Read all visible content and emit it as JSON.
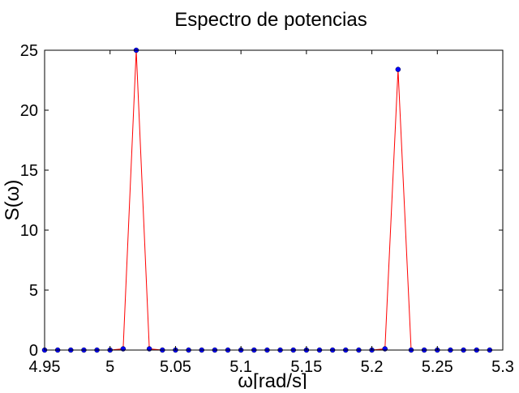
{
  "chart_data": {
    "type": "line",
    "title": "Espectro de potencias",
    "xlabel": "ω[rad/s]",
    "ylabel": "S(ω)",
    "xlim": [
      4.95,
      5.3
    ],
    "ylim": [
      0,
      25
    ],
    "xticks": [
      4.95,
      5.0,
      5.05,
      5.1,
      5.15,
      5.2,
      5.25,
      5.3
    ],
    "xtick_labels": [
      "4.95",
      "5",
      "5.05",
      "5.1",
      "5.15",
      "5.2",
      "5.25",
      "5.3"
    ],
    "yticks": [
      0,
      5,
      10,
      15,
      20,
      25
    ],
    "ytick_labels": [
      "0",
      "5",
      "10",
      "15",
      "20",
      "25"
    ],
    "grid": false,
    "series": [
      {
        "line_color": "#ff0000",
        "marker_color": "#0000ff",
        "x": [
          4.95,
          4.96,
          4.97,
          4.98,
          4.99,
          5.0,
          5.01,
          5.02,
          5.03,
          5.04,
          5.05,
          5.06,
          5.07,
          5.08,
          5.09,
          5.1,
          5.11,
          5.12,
          5.13,
          5.14,
          5.15,
          5.16,
          5.17,
          5.18,
          5.19,
          5.2,
          5.21,
          5.22,
          5.23,
          5.24,
          5.25,
          5.26,
          5.27,
          5.28,
          5.29
        ],
        "y": [
          0,
          0,
          0,
          0,
          0,
          0,
          0.1,
          25.0,
          0.1,
          0,
          0,
          0,
          0,
          0,
          0,
          0,
          0,
          0,
          0,
          0,
          0,
          0,
          0,
          0,
          0,
          0,
          0.1,
          23.4,
          0,
          0,
          0,
          0,
          0,
          0,
          0
        ]
      }
    ]
  }
}
